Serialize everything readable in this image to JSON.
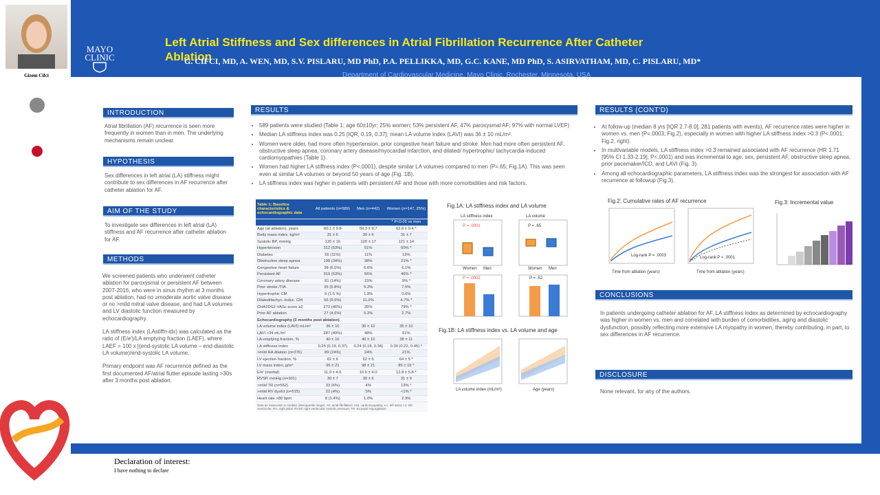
{
  "header": {
    "title": "Left Atrial Stiffness and Sex differences in Atrial Fibrillation Recurrence After Catheter Ablation",
    "authors": "G. CIFCI, MD, A. WEN, MD, S.V. PISLARU, MD PhD, P.A. PELLIKKA, MD, G.C. KANE, MD PhD, S. ASIRVATHAM, MD, C. PISLARU, MD*",
    "department": "Department of Cardiovascular Medicine, Mayo Clinic, Rochester, Minnesota, USA",
    "logo": [
      "MAYO",
      "CLINIC"
    ],
    "presenter": "Gizem Cifci"
  },
  "introduction": {
    "heading": "INTRODUCTION",
    "text": "Atrial fibrillation (AF) recurrence is seen more frequently in women than in men. The underlying mechanisms remain unclear."
  },
  "hypothesis": {
    "heading": "HYPOTHESIS",
    "text": "Sex differences in left atrial (LA) stiffness might contribute to sex differences in AF recurrence after catheter ablation for AF."
  },
  "aim": {
    "heading": "AIM OF THE STUDY",
    "text": "To investigate sex differences in left atrial (LA) stiffness and AF recurrence after catheter ablation for AF."
  },
  "methods": {
    "heading": "METHODS",
    "paragraphs": [
      "We screened patients who underwent catheter ablation for paroxysmal or persistent AF between 2007-2016, who were in sinus rhythm at 3 months post ablation, had no ≥moderate aortic valve disease or no >mild mitral valve disease, and had LA volumes and LV diastolic function measured by echocardiography.",
      "LA stiffness index (LAstiffn-idx) was calculated as the ratio of (E/e')/LA emptying fraction (LAEF), where LAEF = 100 x [(end-systolic LA volume – end-diastolic LA volume)/end-systolic LA volume.",
      "Primary endpoint was AF recurrence defined as the first documented AF/atrial flutter episode lasting >30s after 3 months post ablation."
    ]
  },
  "results": {
    "heading": "RESULTS",
    "bullets": [
      "589 patients were studied (Table 1; age 60±10yr; 25% women; 53% persistent AF, 47% paroxysmal AF; 97% with normal LVEF)",
      "Median LA stiffness index was 0.25 [IQR, 0.19, 0.37]; mean LA volume index (LAVI) was 36 ± 10 mL/m².",
      "Women were older, had more often hypertension, prior congestive heart failure and stroke. Men had more often persistent AF, obstructive sleep apnea, coronary artery disease/myocardial infarction, and dilated/ hypertrophic/ tachycardia-induced cardiomyopathies (Table 1).",
      "Women had higher LA stiffness index (P<.0001), despite similar LA volumes compared to men (P=.65; Fig.1A). This was seen even at similar LA volumes or beyond 50 years of age (Fig. 1B).",
      "LA stiffness index was higher in patients with persistent AF and those with more comorbidities and risk factors."
    ]
  },
  "table": {
    "caption": "Table 1: Baseline characteristics & echocardiographic data",
    "columns": [
      "All patients (n=589)",
      "Men (n=442)",
      "Women (n=147, 25%)"
    ],
    "note": "* P<0.05 vs men",
    "rows": [
      [
        "Age (at ablation), years",
        "60.1 ± 9.8",
        "59.3 ± 9.7",
        "62.6 ± 9.4 *"
      ],
      [
        "Body mass index, kg/m²",
        "31 ± 6",
        "30 ± 6",
        "31 ± 7"
      ],
      [
        "Systolic BP, mmHg",
        "120 ± 16",
        "120 ± 17",
        "121 ± 14"
      ],
      [
        "Hypertension",
        "312 (53%)",
        "51%",
        "60% *"
      ],
      [
        "Diabetes",
        "66 (11%)",
        "11%",
        "13%"
      ],
      [
        "Obstructive sleep apnea",
        "198 (34%)",
        "38%",
        "21% *"
      ],
      [
        "Congestive heart failure",
        "38 (6.5%)",
        "6.6%",
        "6.1%"
      ],
      [
        "Persistent AF",
        "315 (53%)",
        "56%",
        "46% *"
      ],
      [
        "Coronary artery disease",
        "81 (14%)",
        "15%",
        "9% *"
      ],
      [
        "Prior stroke /TIA",
        "35 (5.8%)",
        "5.2%",
        "7.5%"
      ],
      [
        "Hypertrophic CM",
        "9 (1.5 %)",
        "1.8%",
        "0.6%"
      ],
      [
        "Dilated/tachyc.-induc. CM",
        "56 (9.5%)",
        "11.0%",
        "4.7% *"
      ],
      [
        "CHA2DS2-VASc score ≥2",
        "272 (46%)",
        "35%",
        "79% *"
      ],
      [
        "Prior AF ablation",
        "27 (4.6%)",
        "5.2%",
        "2.7%"
      ],
      [
        "Echocardiography (3 months post ablation)"
      ],
      [
        "LA volume index (LAVI) mL/m²",
        "36 ± 10",
        "36 ± 10",
        "35 ± 10"
      ],
      [
        "LAVI >34 mL/m²",
        "287 (49%)",
        "48%",
        "51%"
      ],
      [
        "LA emptying fraction, %",
        "40 ± 10",
        "40 ± 10",
        "38 ± 11"
      ],
      [
        "LA stiffness index",
        "0.25 (0.19, 0.37)",
        "0.24 (0.18, 0.34)",
        "0.30 (0.22, 0.45) *"
      ],
      [
        ">mild RA dilation (n=376)",
        "89 (24%)",
        "24%",
        "21%"
      ],
      [
        "LV ejection fraction, %",
        "62 ± 6",
        "62 ± 6",
        "64 ± 5 *"
      ],
      [
        "LV mass index, g/m²",
        "95 ± 21",
        "98 ± 21",
        "85 ± 16 *"
      ],
      [
        "E/e' (medial)",
        "11.0 ± 4.6",
        "10.5 ± 4.0",
        "12.8 ± 5.8 *"
      ],
      [
        "RVSP, mmHg (n=301)",
        "30 ± 7",
        "30 ± 6",
        "31 ± 9"
      ],
      [
        ">mild TR (n=552)",
        "33 (6%)",
        "4%",
        "13% *"
      ],
      [
        ">mild RV dysfct (n=515)",
        "22 (4%)",
        "5%",
        "<1% *"
      ],
      [
        "Heart rate >80 bpm",
        "8 (1.4%)",
        "1.0%",
        "2.9%"
      ]
    ],
    "footnote": "Data as mean±SD or median (interquartile range). AF, atrial fibrillation; CM, cardiomyopathy; LA, left atrial; LV, left ventricular; RA, right atrial; RVSP, right ventricular systolic pressure; TR, tricuspid regurgitation"
  },
  "fig1a": {
    "caption": "Fig.1A: LA stiffness index and LA volume",
    "panels": [
      "LA stiffness index",
      "LA volume"
    ],
    "pvalues": [
      "P = .0001",
      "P = .65",
      "P = .0002",
      "P = .52"
    ],
    "groups": [
      "Women",
      "Men"
    ]
  },
  "fig1b": {
    "caption": "Fig.1B: LA stiffness index vs. LA volume and age",
    "xlabels": [
      "LA volume index (mL/m²)",
      "Age (years)"
    ]
  },
  "fig2": {
    "caption": "Fig.2: Cumulative rates of AF recurrence",
    "xlabel": "Time from ablation (years)",
    "pvalues": [
      "Log-rank P = .0003",
      "Log-rank P < .0001"
    ]
  },
  "fig3": {
    "caption": "Fig.3: Incremental value"
  },
  "results2": {
    "heading": "RESULTS (CONT'D)",
    "bullets": [
      "At follow-up (median 8 yrs [IQR 2.7-8.0]; 281 patients with events), AF recurrence rates were higher in women vs. men (P=.0003; Fig.2), especially in women with higher LA stiffness index >0.3 (P<.0001; Fig.2, right).",
      "In multivariable models, LA stiffness index >0.3 remained associated with AF recurrence (HR 1.71 [95% CI 1.33-2.19], P<.0001) and was incremental to age, sex, persistent AF, obstructive sleep apnea, prior pacemaker/ICD, and LAVI (Fig. 3).",
      "Among all echocardiographic parameters, LA stiffness index was the strongest for association with AF recurrence at followup (Fig.3)."
    ]
  },
  "conclusions": {
    "heading": "CONCLUSIONS",
    "text": "In patients undergoing catheter ablation for AF, LA stiffness index as determined by echocardiography was higher in women vs. men and correlated with burden of comorbidities, aging and diastolic dysfunction, possibly reflecting more extensive LA myopathy in women, thereby contributing, in part, to sex differences in AF recurrence."
  },
  "disclosure": {
    "heading": "DISCLOSURE",
    "text": "None relevant, for any of the authors."
  },
  "footer": {
    "title": "Declaration of interest:",
    "text": "I have nothing to declare"
  }
}
